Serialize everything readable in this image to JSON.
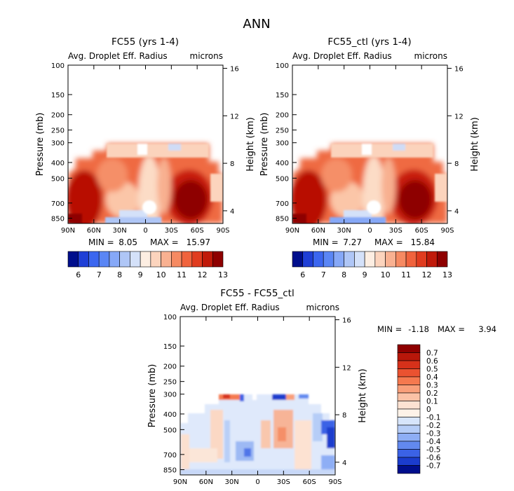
{
  "figure": {
    "title": "ANN"
  },
  "chart_data": [
    {
      "type": "heatmap",
      "title": "FC55 (yrs 1-4)",
      "subtitle_left": "Avg. Droplet Eff. Radius",
      "subtitle_right": "microns",
      "ylabel": "Pressure (mb)",
      "y2label": "Height (km)",
      "x_ticks": [
        "90N",
        "60N",
        "30N",
        "0",
        "30S",
        "60S",
        "90S"
      ],
      "y_ticks": [
        "100",
        "150",
        "200",
        "250",
        "300",
        "400",
        "500",
        "700",
        "850"
      ],
      "y2_ticks": [
        "16",
        "12",
        "8",
        "4"
      ],
      "stats": {
        "min_label": "MIN =",
        "min": "8.05",
        "max_label": "MAX =",
        "max": "15.97"
      },
      "colorbar_labels": [
        "6",
        "7",
        "8",
        "9",
        "10",
        "11",
        "12",
        "13"
      ],
      "colorbar_colors": [
        "#000e8c",
        "#1f3fd6",
        "#3b66ef",
        "#5a86f5",
        "#86a8f7",
        "#afc6f6",
        "#d4e1f9",
        "#fdeee2",
        "#fcd4bd",
        "#f9b191",
        "#f68a62",
        "#f0633d",
        "#e03c1f",
        "#c01a0a",
        "#8e0000"
      ]
    },
    {
      "type": "heatmap",
      "title": "FC55_ctl (yrs 1-4)",
      "subtitle_left": "Avg. Droplet Eff. Radius",
      "subtitle_right": "microns",
      "ylabel": "Pressure (mb)",
      "y2label": "Height (km)",
      "x_ticks": [
        "90N",
        "60N",
        "30N",
        "0",
        "30S",
        "60S",
        "90S"
      ],
      "y_ticks": [
        "100",
        "150",
        "200",
        "250",
        "300",
        "400",
        "500",
        "700",
        "850"
      ],
      "y2_ticks": [
        "16",
        "12",
        "8",
        "4"
      ],
      "stats": {
        "min_label": "MIN =",
        "min": "7.27",
        "max_label": "MAX =",
        "max": "15.84"
      },
      "colorbar_labels": [
        "6",
        "7",
        "8",
        "9",
        "10",
        "11",
        "12",
        "13"
      ],
      "colorbar_colors": [
        "#000e8c",
        "#1f3fd6",
        "#3b66ef",
        "#5a86f5",
        "#86a8f7",
        "#afc6f6",
        "#d4e1f9",
        "#fdeee2",
        "#fcd4bd",
        "#f9b191",
        "#f68a62",
        "#f0633d",
        "#e03c1f",
        "#c01a0a",
        "#8e0000"
      ]
    },
    {
      "type": "heatmap",
      "title": "FC55 - FC55_ctl",
      "subtitle_left": "Avg. Droplet Eff. Radius",
      "subtitle_right": "microns",
      "ylabel": "Pressure (mb)",
      "y2label": "Height (km)",
      "x_ticks": [
        "90N",
        "60N",
        "30N",
        "0",
        "30S",
        "60S",
        "90S"
      ],
      "y_ticks": [
        "100",
        "150",
        "200",
        "250",
        "300",
        "400",
        "500",
        "700",
        "850"
      ],
      "y2_ticks": [
        "16",
        "12",
        "8",
        "4"
      ],
      "stats": {
        "min_label": "MIN =",
        "min": "-1.18",
        "max_label": "MAX =",
        "max": "3.94"
      },
      "colorbar_labels": [
        "0.7",
        "0.6",
        "0.5",
        "0.4",
        "0.3",
        "0.2",
        "0.1",
        "0",
        "-0.1",
        "-0.2",
        "-0.3",
        "-0.4",
        "-0.5",
        "-0.6",
        "-0.7"
      ],
      "colorbar_colors": [
        "#8e0000",
        "#b8170a",
        "#d6311a",
        "#ea5230",
        "#f5794f",
        "#f99f7a",
        "#fbc2a6",
        "#fde2d2",
        "#fdf2e8",
        "#d7e5fb",
        "#b6cdf7",
        "#8eaef5",
        "#6289ef",
        "#3b62e6",
        "#1b3ccd",
        "#000e8c"
      ]
    }
  ]
}
